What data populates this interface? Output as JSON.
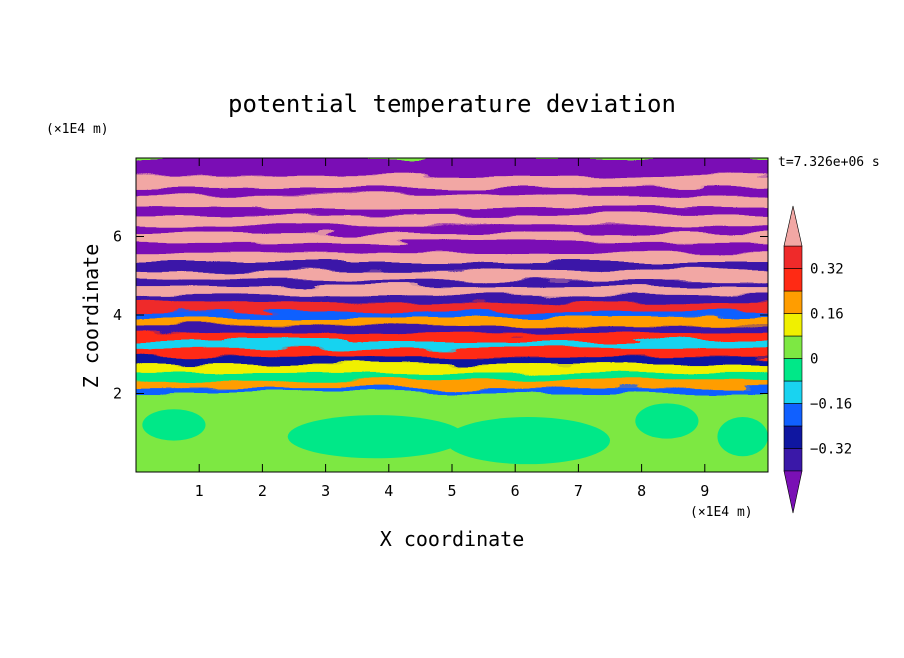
{
  "chart_data": {
    "type": "heatmap",
    "title": "potential temperature deviation",
    "xlabel": "X coordinate",
    "ylabel": "Z coordinate",
    "x_unit": "(×1E4 m)",
    "y_unit": "(×1E4 m)",
    "time_label": "t=7.326e+06 s",
    "xlim": [
      0,
      10
    ],
    "ylim": [
      0,
      8
    ],
    "x_ticks": [
      1,
      2,
      3,
      4,
      5,
      6,
      7,
      8,
      9
    ],
    "y_ticks": [
      2,
      4,
      6
    ],
    "colorbar": {
      "levels": [
        -0.4,
        -0.32,
        -0.24,
        -0.16,
        -0.08,
        0,
        0.08,
        0.16,
        0.24,
        0.32,
        0.4
      ],
      "tick_labels": [
        "0.32",
        "0.16",
        "0",
        "−0.16",
        "−0.32"
      ],
      "tick_values": [
        0.32,
        0.16,
        0,
        -0.16,
        -0.32
      ],
      "colors": [
        "#7a10b5",
        "#3a18a8",
        "#0f16a0",
        "#1060ff",
        "#19d3f0",
        "#00e888",
        "#7de843",
        "#f0f000",
        "#ff9d00",
        "#ff2a14",
        "#ef2a2a",
        "#f2a7a4"
      ],
      "extend": "both"
    },
    "layers": [
      {
        "z": [
          0.0,
          2.05
        ],
        "value": 0.03
      },
      {
        "z": [
          2.05,
          2.15
        ],
        "value": -0.2
      },
      {
        "z": [
          2.15,
          2.35
        ],
        "value": 0.2
      },
      {
        "z": [
          2.35,
          2.55
        ],
        "value": -0.05
      },
      {
        "z": [
          2.55,
          2.75
        ],
        "value": 0.1
      },
      {
        "z": [
          2.75,
          2.95
        ],
        "value": -0.3
      },
      {
        "z": [
          2.95,
          3.15
        ],
        "value": 0.25
      },
      {
        "z": [
          3.15,
          3.35
        ],
        "value": -0.1
      },
      {
        "z": [
          3.35,
          3.55
        ],
        "value": 0.3
      },
      {
        "z": [
          3.55,
          3.75
        ],
        "value": -0.36
      },
      {
        "z": [
          3.75,
          3.95
        ],
        "value": 0.2
      },
      {
        "z": [
          3.95,
          4.1
        ],
        "value": -0.2
      },
      {
        "z": [
          4.1,
          4.35
        ],
        "value": 0.36
      },
      {
        "z": [
          4.35,
          4.5
        ],
        "value": -0.36
      },
      {
        "z": [
          4.5,
          4.75
        ],
        "value": 0.4
      },
      {
        "z": [
          4.75,
          4.9
        ],
        "value": -0.4
      },
      {
        "z": [
          4.9,
          5.15
        ],
        "value": 0.4
      },
      {
        "z": [
          5.15,
          5.35
        ],
        "value": -0.4
      },
      {
        "z": [
          5.35,
          5.6
        ],
        "value": 0.42
      },
      {
        "z": [
          5.6,
          5.85
        ],
        "value": -0.42
      },
      {
        "z": [
          5.85,
          6.1
        ],
        "value": 0.42
      },
      {
        "z": [
          6.1,
          6.3
        ],
        "value": -0.42
      },
      {
        "z": [
          6.3,
          6.55
        ],
        "value": 0.42
      },
      {
        "z": [
          6.55,
          6.75
        ],
        "value": -0.42
      },
      {
        "z": [
          6.75,
          7.05
        ],
        "value": 0.42
      },
      {
        "z": [
          7.05,
          7.25
        ],
        "value": -0.42
      },
      {
        "z": [
          7.25,
          7.55
        ],
        "value": 0.42
      },
      {
        "z": [
          7.55,
          8.0
        ],
        "value": -0.42
      }
    ],
    "blobs": [
      {
        "x": 3.8,
        "z": 0.9,
        "rx": 1.4,
        "rz": 0.55,
        "value": -0.02
      },
      {
        "x": 6.2,
        "z": 0.8,
        "rx": 1.3,
        "rz": 0.6,
        "value": -0.02
      },
      {
        "x": 8.4,
        "z": 1.3,
        "rx": 0.5,
        "rz": 0.45,
        "value": -0.02
      },
      {
        "x": 0.6,
        "z": 1.2,
        "rx": 0.5,
        "rz": 0.4,
        "value": -0.02
      },
      {
        "x": 9.6,
        "z": 0.9,
        "rx": 0.4,
        "rz": 0.5,
        "value": -0.02
      }
    ]
  }
}
